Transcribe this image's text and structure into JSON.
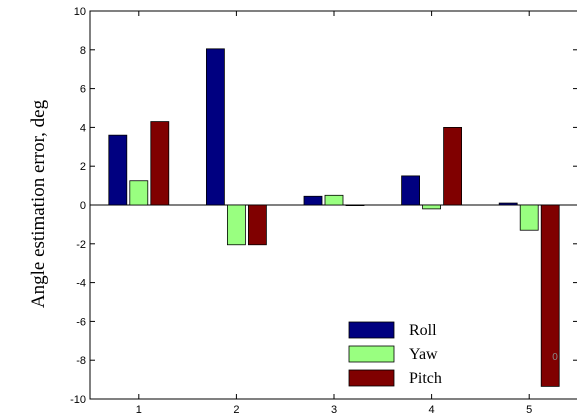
{
  "chart_data": {
    "type": "bar",
    "categories": [
      "1",
      "2",
      "3",
      "4",
      "5"
    ],
    "series": [
      {
        "name": "Roll",
        "color": "#000080",
        "values": [
          3.6,
          8.05,
          0.45,
          1.5,
          0.1
        ]
      },
      {
        "name": "Yaw",
        "color": "#99ff80",
        "values": [
          1.25,
          -2.05,
          0.5,
          -0.2,
          -1.3
        ]
      },
      {
        "name": "Pitch",
        "color": "#800000",
        "values": [
          4.3,
          -2.05,
          0.0,
          4.0,
          -9.35
        ]
      }
    ],
    "title": "",
    "xlabel": "",
    "ylabel": "Angle estimation error, deg",
    "ylim": [
      -10,
      10
    ],
    "yticks": [
      10,
      8,
      6,
      4,
      2,
      0,
      -2,
      -4,
      -6,
      -8,
      -10
    ],
    "grid": false,
    "legend": {
      "placement": "bottom-right"
    },
    "stray_mark": "0"
  }
}
